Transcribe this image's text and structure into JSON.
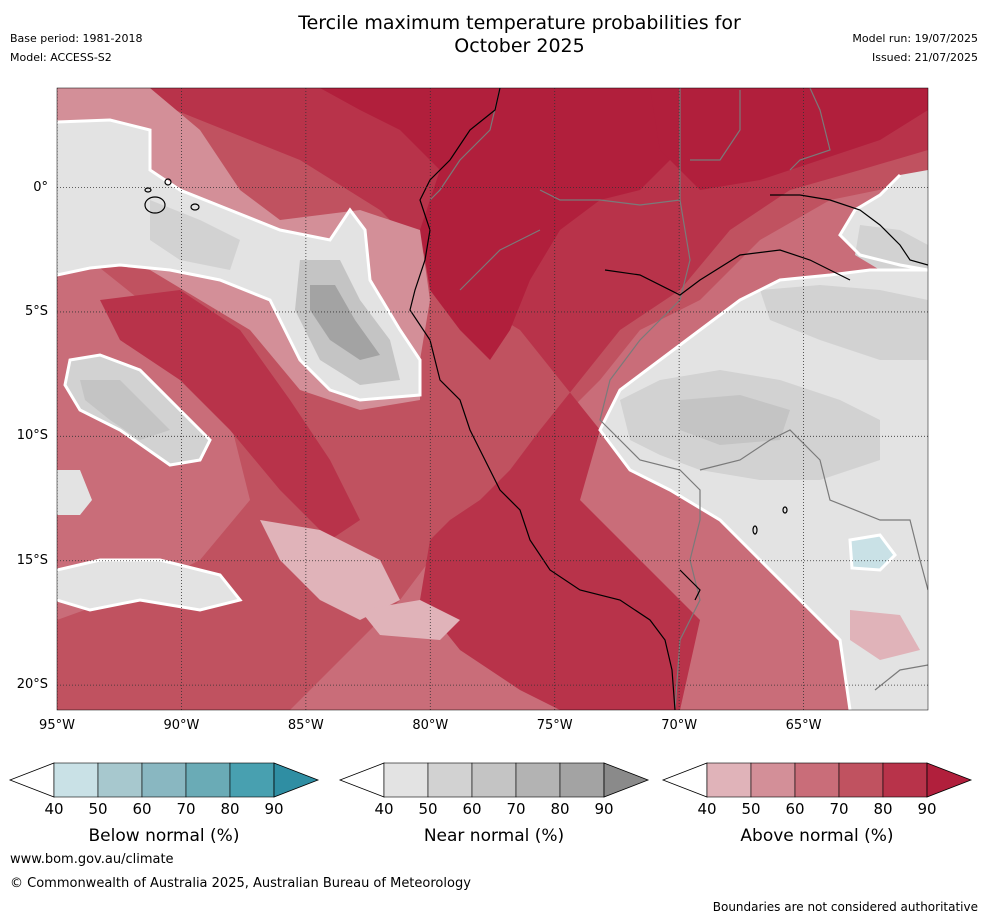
{
  "header": {
    "title_line1": "Tercile maximum temperature probabilities for",
    "title_line2": "October 2025",
    "base_period": "Base period: 1981-2018",
    "model": "Model: ACCESS-S2",
    "model_run": "Model run: 19/07/2025",
    "issued": "Issued: 21/07/2025"
  },
  "map": {
    "lat_ticks": [
      "0°",
      "5°S",
      "10°S",
      "15°S",
      "20°S"
    ],
    "lon_ticks": [
      "95°W",
      "90°W",
      "85°W",
      "80°W",
      "75°W",
      "70°W",
      "65°W"
    ],
    "lat_values": [
      0,
      -5,
      -10,
      -15,
      -20
    ],
    "lon_values": [
      -95,
      -90,
      -85,
      -80,
      -75,
      -70,
      -65
    ],
    "extent": {
      "lon": [
        -95,
        -60
      ],
      "lat": [
        -21,
        4
      ]
    }
  },
  "colorbars": [
    {
      "label": "Below normal (%)",
      "ticks": [
        "40",
        "50",
        "60",
        "70",
        "80",
        "90"
      ],
      "colors": [
        "#ffffff",
        "#c9e1e6",
        "#a7c8ce",
        "#89b7c1",
        "#6aabb6",
        "#48a0b0",
        "#2f8ea3"
      ]
    },
    {
      "label": "Near normal (%)",
      "ticks": [
        "40",
        "50",
        "60",
        "70",
        "80",
        "90"
      ],
      "colors": [
        "#ffffff",
        "#e3e3e3",
        "#d2d2d2",
        "#c4c4c4",
        "#b3b3b3",
        "#a3a3a3",
        "#8a8a8a"
      ]
    },
    {
      "label": "Above normal (%)",
      "ticks": [
        "40",
        "50",
        "60",
        "70",
        "80",
        "90"
      ],
      "colors": [
        "#ffffff",
        "#e0b3b9",
        "#d38f98",
        "#c96d79",
        "#c05260",
        "#b8334a",
        "#b11f3c"
      ]
    }
  ],
  "footer": {
    "website": "www.bom.gov.au/climate",
    "copyright": "© Commonwealth of Australia 2025, Australian Bureau of Meteorology",
    "disclaimer": "Boundaries are not considered authoritative"
  }
}
